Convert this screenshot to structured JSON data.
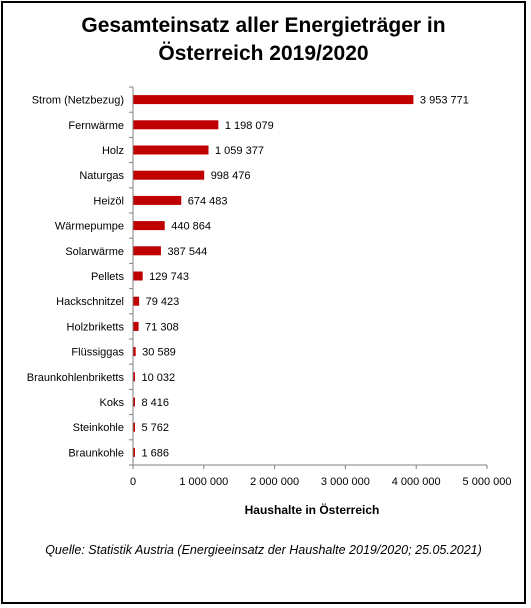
{
  "chart_data": {
    "type": "bar",
    "orientation": "horizontal",
    "title_lines": [
      "Gesamteinsatz aller Energieträger in",
      "Österreich  2019/2020"
    ],
    "categories": [
      "Strom (Netzbezug)",
      "Fernwärme",
      "Holz",
      "Naturgas",
      "Heizöl",
      "Wärmepumpe",
      "Solarwärme",
      "Pellets",
      "Hackschnitzel",
      "Holzbriketts",
      "Flüssiggas",
      "Braunkohlenbriketts",
      "Koks",
      "Steinkohle",
      "Braunkohle"
    ],
    "values": [
      3953771,
      1198079,
      1059377,
      998476,
      674483,
      440864,
      387544,
      129743,
      79423,
      71308,
      30589,
      10032,
      8416,
      5762,
      1686
    ],
    "value_labels": [
      "3 953 771",
      "1 198 079",
      "1 059 377",
      "998 476",
      "674 483",
      "440 864",
      "387 544",
      "129 743",
      "79 423",
      "71 308",
      "30 589",
      "10 032",
      "8 416",
      "5 762",
      "1 686"
    ],
    "xlabel": "Haushalte in Österreich",
    "xlim": [
      0,
      5000000
    ],
    "xticks": [
      0,
      1000000,
      2000000,
      3000000,
      4000000,
      5000000
    ],
    "xtick_labels": [
      "0",
      "1 000 000",
      "2 000 000",
      "3 000 000",
      "4 000 000",
      "5 000 000"
    ],
    "bar_color": "#C00000",
    "grid": false,
    "source": "Quelle: Statistik Austria (Energieeinsatz der Haushalte 2019/2020;  25.05.2021)"
  }
}
